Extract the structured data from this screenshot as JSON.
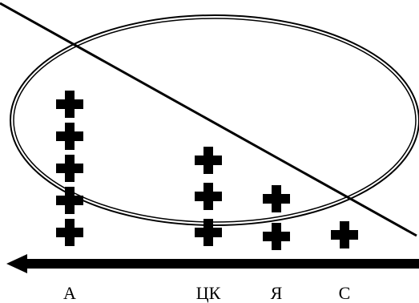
{
  "diagram": {
    "line_color": "#000000",
    "background": "#ffffff",
    "axis_direction": "right-to-left",
    "columns": [
      {
        "label": "А",
        "count": 5
      },
      {
        "label": "ЦК",
        "count": 3
      },
      {
        "label": "Я",
        "count": 2
      },
      {
        "label": "С",
        "count": 1
      }
    ],
    "marker_icon": "plus-icon"
  }
}
